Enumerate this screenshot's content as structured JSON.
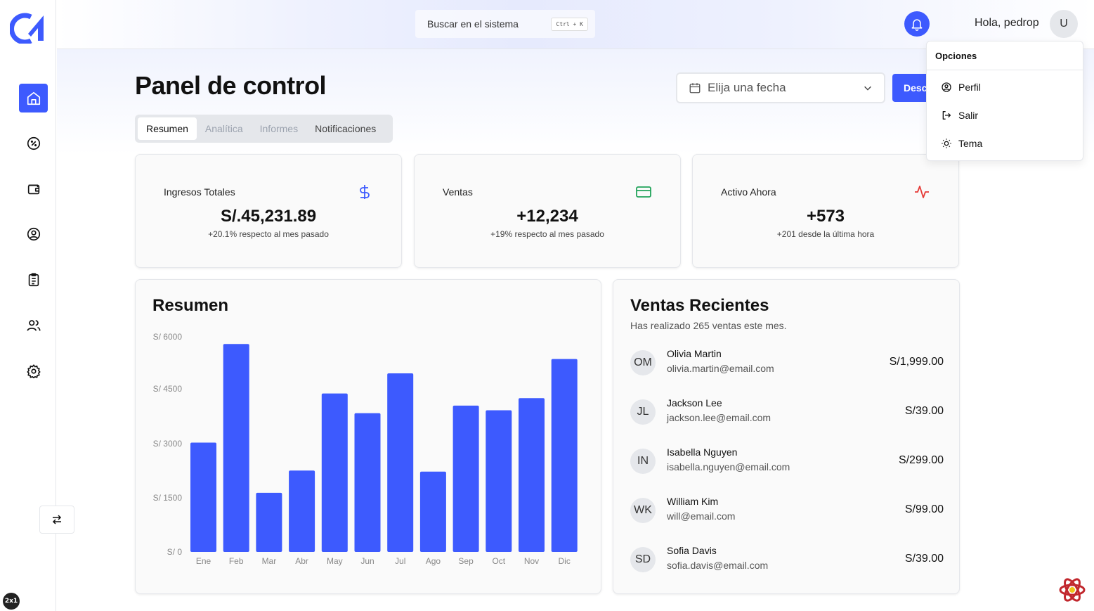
{
  "search": {
    "label": "Buscar en el sistema",
    "shortcut": "Ctrl + K"
  },
  "header": {
    "greeting": "Hola, pedrop",
    "avatar_initial": "U"
  },
  "user_menu": {
    "title": "Opciones",
    "items": [
      {
        "label": "Perfil",
        "icon": "user-circle-icon"
      },
      {
        "label": "Salir",
        "icon": "logout-icon"
      },
      {
        "label": "Tema",
        "icon": "sun-icon"
      }
    ]
  },
  "sidebar": {
    "items": [
      {
        "icon": "home-icon",
        "active": true
      },
      {
        "icon": "percent-icon",
        "active": false
      },
      {
        "icon": "wallet-icon",
        "active": false
      },
      {
        "icon": "user-circle-icon",
        "active": false
      },
      {
        "icon": "clipboard-list-icon",
        "active": false
      },
      {
        "icon": "users-icon",
        "active": false
      },
      {
        "icon": "settings-icon",
        "active": false
      }
    ],
    "badge": "2x1"
  },
  "main": {
    "title": "Panel de control",
    "date_placeholder": "Elija una fecha",
    "download_label": "Descargar",
    "tabs": [
      "Resumen",
      "Analítica",
      "Informes",
      "Notificaciones"
    ]
  },
  "stats": [
    {
      "label": "Ingresos Totales",
      "value": "S/.45,231.89",
      "sub": "+20.1% respecto al mes pasado",
      "icon": "dollar-icon",
      "color": "#3d5afe"
    },
    {
      "label": "Ventas",
      "value": "+12,234",
      "sub": "+19% respecto al mes pasado",
      "icon": "credit-card-icon",
      "color": "#22a35a"
    },
    {
      "label": "Activo Ahora",
      "value": "+573",
      "sub": "+201 desde la última hora",
      "icon": "activity-icon",
      "color": "#e53935"
    }
  ],
  "overview": {
    "title": "Resumen"
  },
  "chart_data": {
    "type": "bar",
    "categories": [
      "Ene",
      "Feb",
      "Mar",
      "Abr",
      "May",
      "Jun",
      "Jul",
      "Ago",
      "Sep",
      "Oct",
      "Nov",
      "Dic"
    ],
    "values": [
      3050,
      5800,
      1650,
      2270,
      4420,
      3870,
      4980,
      2240,
      4080,
      3950,
      4290,
      5380
    ],
    "y_ticks": [
      "S/ 0",
      "S/ 1500",
      "S/ 3000",
      "S/ 4500",
      "S/ 6000"
    ],
    "ylim": [
      0,
      6000
    ],
    "bar_color": "#3d5afe",
    "grid": false
  },
  "recent_sales": {
    "title": "Ventas Recientes",
    "subtitle": "Has realizado 265 ventas este mes.",
    "items": [
      {
        "initials": "OM",
        "name": "Olivia Martin",
        "email": "olivia.martin@email.com",
        "amount": "S/1,999.00"
      },
      {
        "initials": "JL",
        "name": "Jackson Lee",
        "email": "jackson.lee@email.com",
        "amount": "S/39.00"
      },
      {
        "initials": "IN",
        "name": "Isabella Nguyen",
        "email": "isabella.nguyen@email.com",
        "amount": "S/299.00"
      },
      {
        "initials": "WK",
        "name": "William Kim",
        "email": "will@email.com",
        "amount": "S/99.00"
      },
      {
        "initials": "SD",
        "name": "Sofia Davis",
        "email": "sofia.davis@email.com",
        "amount": "S/39.00"
      }
    ]
  }
}
